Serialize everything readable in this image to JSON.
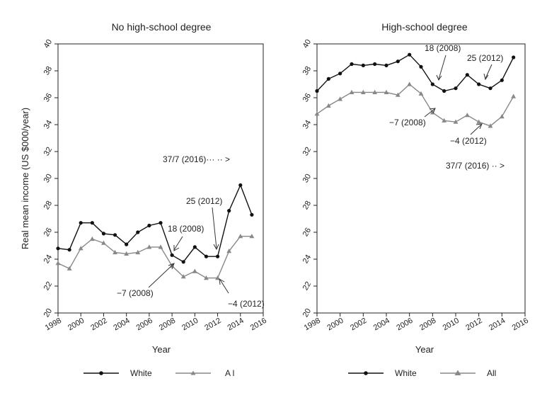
{
  "chart_data": [
    {
      "type": "line",
      "title": "No high-school degree",
      "xlabel": "Year",
      "ylabel": "Real mean income (US $000/year)",
      "xlim": [
        1998,
        2016
      ],
      "ylim": [
        20,
        40
      ],
      "xticks": [
        1998,
        2000,
        2002,
        2004,
        2006,
        2008,
        2010,
        2012,
        2014,
        2016
      ],
      "xtick_labels": [
        "1998",
        "2000",
        "2002",
        "2004",
        "2006",
        "2008",
        "2010",
        "2012",
        "2014",
        "2016"
      ],
      "yticks": [
        20,
        22,
        24,
        26,
        28,
        30,
        32,
        34,
        36,
        38,
        40
      ],
      "ytick_labels": [
        "20",
        "22",
        "24",
        "26",
        "28",
        "30",
        "32",
        "34",
        "36",
        "38",
        "40"
      ],
      "grid": false,
      "legend_position": "bottom",
      "x": [
        1998,
        1999,
        2000,
        2001,
        2002,
        2003,
        2004,
        2005,
        2006,
        2007,
        2008,
        2009,
        2010,
        2011,
        2012,
        2013,
        2014,
        2015
      ],
      "series": [
        {
          "name": "White",
          "color": "#111111",
          "marker": "circle",
          "values": [
            24.8,
            24.7,
            26.7,
            26.7,
            25.9,
            25.8,
            25.1,
            26.0,
            26.5,
            26.7,
            24.3,
            23.8,
            24.9,
            24.2,
            24.2,
            27.6,
            29.5,
            27.3
          ]
        },
        {
          "name": "All",
          "color": "#888888",
          "marker": "triangle",
          "values": [
            23.7,
            23.3,
            24.8,
            25.5,
            25.2,
            24.5,
            24.4,
            24.5,
            24.9,
            24.9,
            23.5,
            22.7,
            23.1,
            22.6,
            22.6,
            24.6,
            25.7,
            25.7
          ]
        }
      ],
      "legend_labels": [
        "White",
        "A l"
      ],
      "annotations": [
        {
          "text": "37/7 (2016)···  ··  >"
        },
        {
          "text": "25 (2012)"
        },
        {
          "text": "18 (2008)"
        },
        {
          "text": "−7 (2008)"
        },
        {
          "text": "−4 (2012)"
        }
      ]
    },
    {
      "type": "line",
      "title": "High-school degree",
      "xlabel": "Year",
      "ylabel": "",
      "xlim": [
        1998,
        2016
      ],
      "ylim": [
        20,
        40
      ],
      "xticks": [
        1998,
        2000,
        2002,
        2004,
        2006,
        2008,
        2010,
        2012,
        2014,
        2016
      ],
      "xtick_labels": [
        "1998",
        "2000",
        "2002",
        "2004",
        "2006",
        "2008",
        "2010",
        "2012",
        "2014",
        "2016"
      ],
      "yticks": [
        20,
        22,
        24,
        26,
        28,
        30,
        32,
        34,
        36,
        38,
        40
      ],
      "ytick_labels": [
        "20",
        "22",
        "24",
        "26",
        "28",
        "30",
        "32",
        "34",
        "36",
        "38",
        "40"
      ],
      "grid": false,
      "legend_position": "bottom",
      "x": [
        1998,
        1999,
        2000,
        2001,
        2002,
        2003,
        2004,
        2005,
        2006,
        2007,
        2008,
        2009,
        2010,
        2011,
        2012,
        2013,
        2014,
        2015
      ],
      "series": [
        {
          "name": "White",
          "color": "#111111",
          "marker": "circle",
          "values": [
            36.5,
            37.4,
            37.8,
            38.5,
            38.4,
            38.5,
            38.4,
            38.7,
            39.2,
            38.3,
            37.0,
            36.5,
            36.7,
            37.7,
            37.0,
            36.7,
            37.3,
            39.0
          ]
        },
        {
          "name": "All",
          "color": "#888888",
          "marker": "triangle",
          "values": [
            34.8,
            35.4,
            35.9,
            36.4,
            36.4,
            36.4,
            36.4,
            36.2,
            37.0,
            36.3,
            34.9,
            34.3,
            34.2,
            34.7,
            34.2,
            33.9,
            34.6,
            36.1
          ]
        }
      ],
      "legend_labels": [
        "White",
        "All"
      ],
      "annotations": [
        {
          "text": "18 (2008)"
        },
        {
          "text": "25 (2012)"
        },
        {
          "text": "−7 (2008)"
        },
        {
          "text": "−4 (2012)"
        },
        {
          "text": "37/7 (2016)  ·· >"
        }
      ]
    }
  ]
}
